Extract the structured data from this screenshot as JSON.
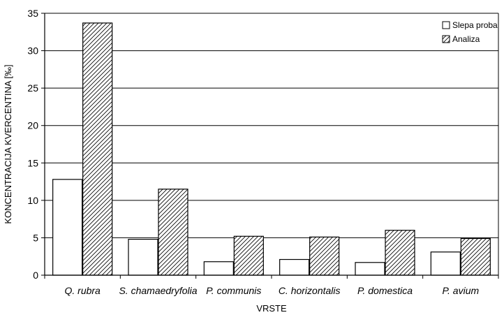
{
  "chart_data": {
    "type": "bar",
    "categories": [
      "Q. rubra",
      "S. chamaedryfolia",
      "P. communis",
      "C. horizontalis",
      "P. domestica",
      "P. avium"
    ],
    "series": [
      {
        "name": "Slepa proba",
        "values": [
          12.8,
          4.8,
          1.8,
          2.1,
          1.7,
          3.1
        ],
        "fill": "#ffffff",
        "pattern": "none"
      },
      {
        "name": "Analiza",
        "values": [
          33.7,
          11.5,
          5.2,
          5.1,
          6.0,
          4.9
        ],
        "fill": "#ffffff",
        "pattern": "diagonal-hatch"
      }
    ],
    "xlabel": "VRSTE",
    "ylabel": "KONCENTRACIJA KVERCENTINA [‰]",
    "ylim": [
      0,
      35
    ],
    "yticks": [
      0,
      5,
      10,
      15,
      20,
      25,
      30,
      35
    ],
    "grid": true,
    "legend_position": "top-right",
    "colors": {
      "stroke": "#000000",
      "background": "#ffffff"
    }
  }
}
